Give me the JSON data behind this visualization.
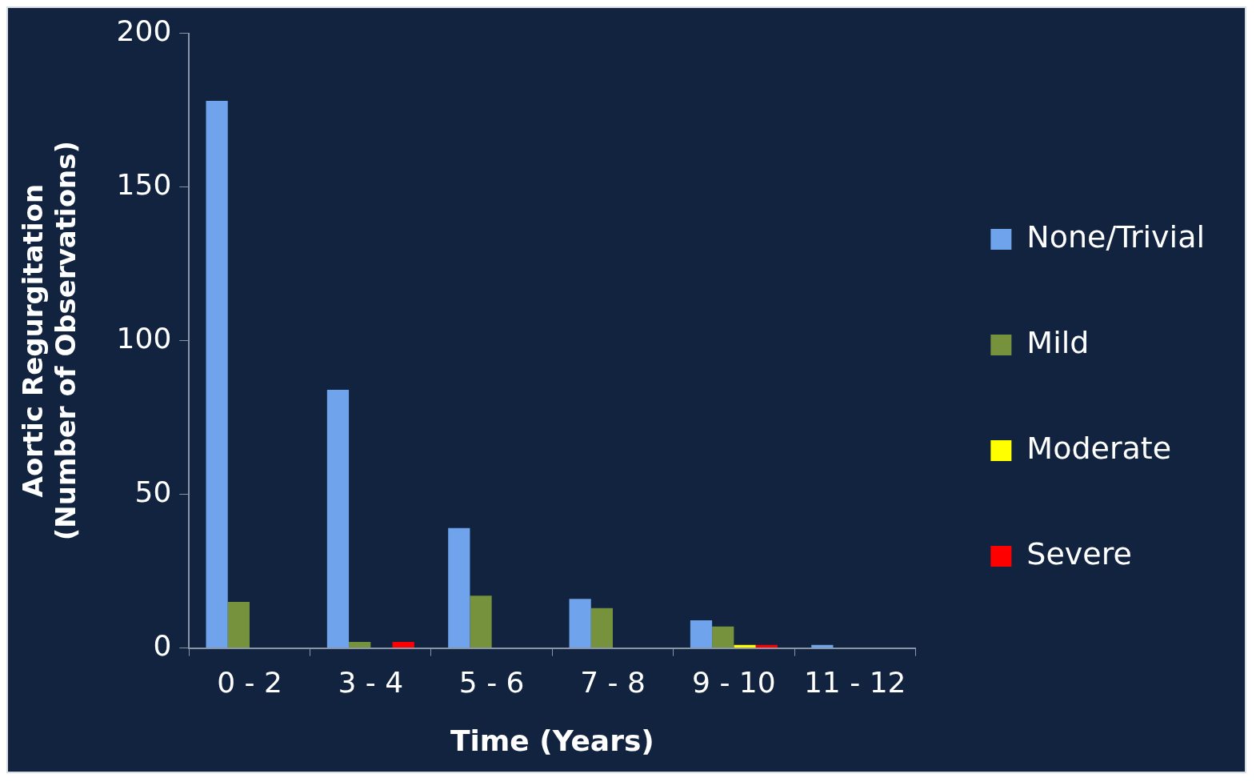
{
  "chart_data": {
    "type": "bar",
    "xlabel": "Time (Years)",
    "ylabel": "Aortic Regurgitation\n(Number of Observations)",
    "categories": [
      "0 - 2",
      "3 - 4",
      "5 - 6",
      "7 - 8",
      "9 - 10",
      "11 - 12"
    ],
    "ylim": [
      0,
      200
    ],
    "yticks": [
      0,
      50,
      100,
      150,
      200
    ],
    "grid": false,
    "legend": "right",
    "series": [
      {
        "name": "None/Trivial",
        "color": "#6fa3ec",
        "values": [
          178,
          84,
          39,
          16,
          9,
          1
        ]
      },
      {
        "name": "Mild",
        "color": "#76923c",
        "values": [
          15,
          2,
          17,
          13,
          7,
          0
        ]
      },
      {
        "name": "Moderate",
        "color": "#ffff00",
        "values": [
          0,
          0,
          0,
          0,
          1,
          0
        ]
      },
      {
        "name": "Severe",
        "color": "#ff0000",
        "values": [
          0,
          2,
          0,
          0,
          1,
          0
        ]
      }
    ]
  }
}
